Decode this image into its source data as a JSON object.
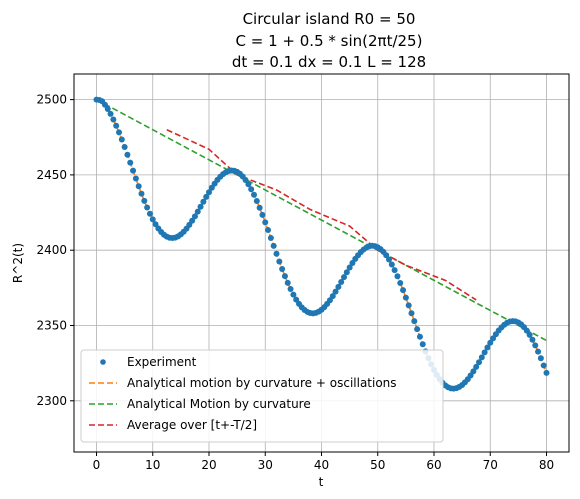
{
  "chart_data": {
    "type": "line",
    "title": [
      "Circular island R0 = 50",
      "C = 1 + 0.5 * sin(2πt/25)",
      "dt = 0.1 dx = 0.1 L = 128"
    ],
    "xlabel": "t",
    "ylabel": "R^2(t)",
    "xlim": [
      -4,
      84
    ],
    "ylim": [
      2266,
      2517
    ],
    "xticks": [
      0,
      10,
      20,
      30,
      40,
      50,
      60,
      70,
      80
    ],
    "yticks": [
      2300,
      2350,
      2400,
      2450,
      2500
    ],
    "grid": true,
    "legend_position": "lower-left",
    "model": {
      "R0_squared": 2500,
      "slope": -2,
      "amplitude": 12.5,
      "period": 25,
      "t_max": 80
    },
    "series": [
      {
        "name": "Experiment",
        "style": "markers",
        "color": "#1f77b4",
        "x_range": [
          0,
          80
        ]
      },
      {
        "name": "Analytical motion by curvature + oscillations",
        "style": "dashed",
        "color": "#ff7f0e",
        "x_range": [
          0,
          80
        ]
      },
      {
        "name": "Analytical Motion by curvature",
        "style": "dashed",
        "color": "#2ca02c",
        "x_range": [
          0,
          80
        ]
      },
      {
        "name": "Average over [t+-T/2]",
        "style": "dashed",
        "color": "#d62728",
        "x_range": [
          12.5,
          67.5
        ]
      }
    ]
  }
}
